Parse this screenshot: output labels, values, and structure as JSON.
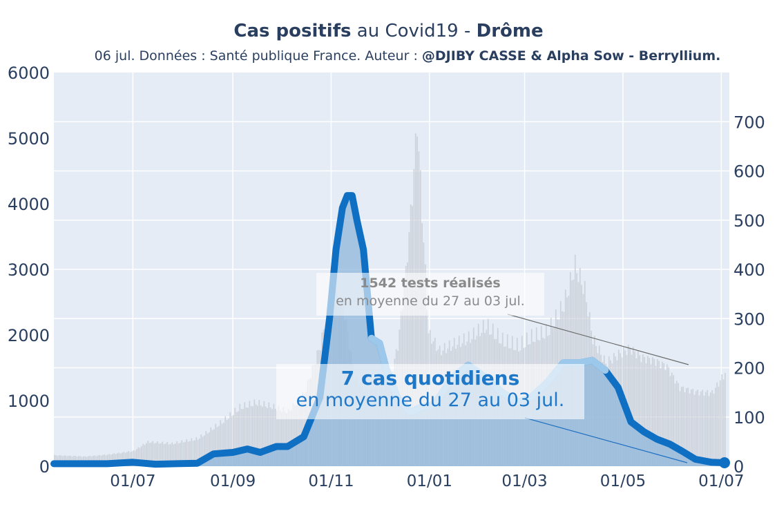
{
  "header": {
    "title_bold": "Cas positifs",
    "title_mid": " au Covid19 - ",
    "title_region": "Drôme",
    "subtitle_prefix": "06 jul. Données : Santé publique France. Auteur : ",
    "subtitle_author": "@DJIBY CASSE & Alpha Sow - Berryllium."
  },
  "colors": {
    "plot_background": "#e5ecf6",
    "tests_bars": "#c9ced6",
    "cases_area": "#8fb7db",
    "cases_line_dark": "#0f6fc2",
    "cases_line_light": "#9cc8ec",
    "annotation_tests": "#8a8a8a",
    "annotation_cases": "#1f77c7"
  },
  "annotations": {
    "tests": {
      "value_line": "1542 tests réalisés",
      "period_line": "en moyenne du 27 au 03 jul."
    },
    "cases": {
      "value_line": "7 cas quotidiens",
      "period_line": "en moyenne du 27 au 03 jul."
    }
  },
  "chart_data": {
    "type": "bar+line",
    "x_axis": {
      "type": "date",
      "tick_labels": [
        "01/07",
        "01/09",
        "01/11",
        "01/01",
        "01/03",
        "01/05",
        "01/07"
      ],
      "tick_dates": [
        "2020-07-01",
        "2020-09-01",
        "2020-11-01",
        "2021-01-01",
        "2021-03-01",
        "2021-05-01",
        "2021-07-01"
      ],
      "range": [
        "2020-05-13",
        "2021-07-06"
      ]
    },
    "y_left": {
      "label": "",
      "range": [
        0,
        6000
      ],
      "ticks": [
        0,
        1000,
        2000,
        3000,
        4000,
        5000,
        6000
      ]
    },
    "y_right": {
      "label": "",
      "range": [
        0,
        800
      ],
      "ticks": [
        0,
        100,
        200,
        300,
        400,
        500,
        600,
        700
      ]
    },
    "grid": true,
    "series": [
      {
        "kind": "bar",
        "axis": "left",
        "points": [
          [
            "2020-05-13",
            180
          ],
          [
            "2020-06-01",
            160
          ],
          [
            "2020-06-15",
            190
          ],
          [
            "2020-07-01",
            250
          ],
          [
            "2020-07-10",
            400
          ],
          [
            "2020-07-25",
            370
          ],
          [
            "2020-08-10",
            450
          ],
          [
            "2020-08-25",
            720
          ],
          [
            "2020-09-05",
            960
          ],
          [
            "2020-09-15",
            1040
          ],
          [
            "2020-09-25",
            980
          ],
          [
            "2020-10-05",
            900
          ],
          [
            "2020-10-15",
            1200
          ],
          [
            "2020-10-25",
            2000
          ],
          [
            "2020-11-01",
            2900
          ],
          [
            "2020-11-08",
            2700
          ],
          [
            "2020-11-15",
            1500
          ],
          [
            "2020-11-22",
            1250
          ],
          [
            "2020-12-01",
            1250
          ],
          [
            "2020-12-07",
            1400
          ],
          [
            "2020-12-12",
            2000
          ],
          [
            "2020-12-17",
            3200
          ],
          [
            "2020-12-21",
            4500
          ],
          [
            "2020-12-24",
            5700
          ],
          [
            "2020-12-27",
            4200
          ],
          [
            "2020-12-31",
            2200
          ],
          [
            "2021-01-07",
            1900
          ],
          [
            "2021-01-15",
            2000
          ],
          [
            "2021-01-25",
            2100
          ],
          [
            "2021-02-05",
            2300
          ],
          [
            "2021-02-15",
            2050
          ],
          [
            "2021-02-25",
            1950
          ],
          [
            "2021-03-05",
            2100
          ],
          [
            "2021-03-15",
            2200
          ],
          [
            "2021-03-25",
            2650
          ],
          [
            "2021-04-01",
            3300
          ],
          [
            "2021-04-07",
            2900
          ],
          [
            "2021-04-12",
            2100
          ],
          [
            "2021-04-20",
            1700
          ],
          [
            "2021-04-28",
            1850
          ],
          [
            "2021-05-05",
            1950
          ],
          [
            "2021-05-12",
            1800
          ],
          [
            "2021-05-20",
            1750
          ],
          [
            "2021-05-28",
            1650
          ],
          [
            "2021-06-05",
            1300
          ],
          [
            "2021-06-15",
            1230
          ],
          [
            "2021-06-25",
            1210
          ],
          [
            "2021-07-03",
            1542
          ]
        ]
      },
      {
        "kind": "line",
        "axis": "right",
        "points": [
          [
            "2020-05-13",
            5
          ],
          [
            "2020-06-15",
            5
          ],
          [
            "2020-07-01",
            8
          ],
          [
            "2020-07-15",
            4
          ],
          [
            "2020-08-10",
            6
          ],
          [
            "2020-08-20",
            25
          ],
          [
            "2020-09-01",
            28
          ],
          [
            "2020-09-10",
            35
          ],
          [
            "2020-09-18",
            28
          ],
          [
            "2020-09-28",
            40
          ],
          [
            "2020-10-05",
            40
          ],
          [
            "2020-10-15",
            60
          ],
          [
            "2020-10-25",
            140
          ],
          [
            "2020-10-31",
            300
          ],
          [
            "2020-11-04",
            440
          ],
          [
            "2020-11-08",
            525
          ],
          [
            "2020-11-11",
            550
          ],
          [
            "2020-11-14",
            550
          ],
          [
            "2020-11-17",
            500
          ],
          [
            "2020-11-21",
            440
          ],
          [
            "2020-11-26",
            260
          ],
          [
            "2020-12-01",
            250
          ],
          [
            "2020-12-05",
            200
          ],
          [
            "2020-12-12",
            140
          ],
          [
            "2020-12-20",
            110
          ],
          [
            "2020-12-27",
            120
          ],
          [
            "2021-01-04",
            125
          ],
          [
            "2021-01-15",
            180
          ],
          [
            "2021-01-25",
            205
          ],
          [
            "2021-02-05",
            180
          ],
          [
            "2021-02-15",
            150
          ],
          [
            "2021-02-25",
            130
          ],
          [
            "2021-03-05",
            140
          ],
          [
            "2021-03-15",
            170
          ],
          [
            "2021-03-25",
            210
          ],
          [
            "2021-04-04",
            210
          ],
          [
            "2021-04-12",
            215
          ],
          [
            "2021-04-20",
            195
          ],
          [
            "2021-04-28",
            160
          ],
          [
            "2021-05-06",
            90
          ],
          [
            "2021-05-14",
            70
          ],
          [
            "2021-05-22",
            55
          ],
          [
            "2021-05-30",
            45
          ],
          [
            "2021-06-07",
            30
          ],
          [
            "2021-06-15",
            14
          ],
          [
            "2021-06-25",
            8
          ],
          [
            "2021-07-03",
            7
          ]
        ]
      }
    ]
  }
}
